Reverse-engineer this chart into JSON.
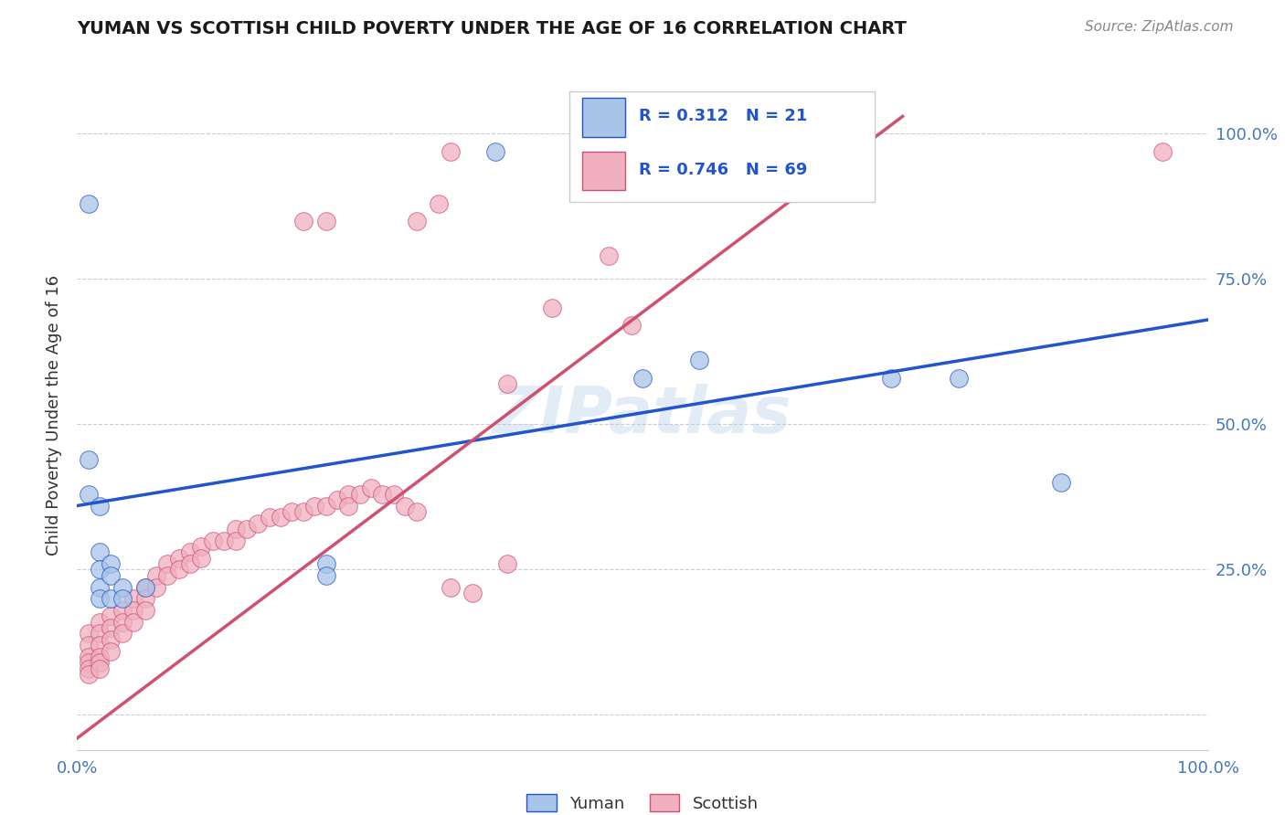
{
  "title": "YUMAN VS SCOTTISH CHILD POVERTY UNDER THE AGE OF 16 CORRELATION CHART",
  "source": "Source: ZipAtlas.com",
  "ylabel": "Child Poverty Under the Age of 16",
  "ytick_positions": [
    0.0,
    0.25,
    0.5,
    0.75,
    1.0
  ],
  "ytick_labels": [
    "",
    "25.0%",
    "50.0%",
    "75.0%",
    "100.0%"
  ],
  "xlim": [
    0.0,
    1.0
  ],
  "ylim": [
    -0.06,
    1.09
  ],
  "blue_color": "#a8c4e8",
  "pink_color": "#f0b0c0",
  "line_blue": "#2255cc",
  "line_pink": "#d05070",
  "watermark": "ZIPatlas",
  "blue_points": [
    [
      0.01,
      0.88
    ],
    [
      0.01,
      0.44
    ],
    [
      0.01,
      0.38
    ],
    [
      0.02,
      0.36
    ],
    [
      0.02,
      0.28
    ],
    [
      0.02,
      0.25
    ],
    [
      0.02,
      0.22
    ],
    [
      0.02,
      0.2
    ],
    [
      0.03,
      0.26
    ],
    [
      0.03,
      0.24
    ],
    [
      0.03,
      0.2
    ],
    [
      0.04,
      0.22
    ],
    [
      0.04,
      0.2
    ],
    [
      0.06,
      0.22
    ],
    [
      0.22,
      0.26
    ],
    [
      0.22,
      0.24
    ],
    [
      0.37,
      0.97
    ],
    [
      0.5,
      0.58
    ],
    [
      0.55,
      0.61
    ],
    [
      0.72,
      0.58
    ],
    [
      0.78,
      0.58
    ],
    [
      0.87,
      0.4
    ]
  ],
  "pink_points": [
    [
      0.01,
      0.14
    ],
    [
      0.01,
      0.12
    ],
    [
      0.01,
      0.1
    ],
    [
      0.01,
      0.09
    ],
    [
      0.01,
      0.08
    ],
    [
      0.01,
      0.07
    ],
    [
      0.02,
      0.16
    ],
    [
      0.02,
      0.14
    ],
    [
      0.02,
      0.12
    ],
    [
      0.02,
      0.1
    ],
    [
      0.02,
      0.09
    ],
    [
      0.02,
      0.08
    ],
    [
      0.03,
      0.17
    ],
    [
      0.03,
      0.15
    ],
    [
      0.03,
      0.13
    ],
    [
      0.03,
      0.11
    ],
    [
      0.04,
      0.18
    ],
    [
      0.04,
      0.16
    ],
    [
      0.04,
      0.14
    ],
    [
      0.05,
      0.2
    ],
    [
      0.05,
      0.18
    ],
    [
      0.05,
      0.16
    ],
    [
      0.06,
      0.22
    ],
    [
      0.06,
      0.2
    ],
    [
      0.06,
      0.18
    ],
    [
      0.07,
      0.24
    ],
    [
      0.07,
      0.22
    ],
    [
      0.08,
      0.26
    ],
    [
      0.08,
      0.24
    ],
    [
      0.09,
      0.27
    ],
    [
      0.09,
      0.25
    ],
    [
      0.1,
      0.28
    ],
    [
      0.1,
      0.26
    ],
    [
      0.11,
      0.29
    ],
    [
      0.11,
      0.27
    ],
    [
      0.12,
      0.3
    ],
    [
      0.13,
      0.3
    ],
    [
      0.14,
      0.32
    ],
    [
      0.14,
      0.3
    ],
    [
      0.15,
      0.32
    ],
    [
      0.16,
      0.33
    ],
    [
      0.17,
      0.34
    ],
    [
      0.18,
      0.34
    ],
    [
      0.19,
      0.35
    ],
    [
      0.2,
      0.35
    ],
    [
      0.21,
      0.36
    ],
    [
      0.22,
      0.36
    ],
    [
      0.23,
      0.37
    ],
    [
      0.24,
      0.38
    ],
    [
      0.24,
      0.36
    ],
    [
      0.25,
      0.38
    ],
    [
      0.26,
      0.39
    ],
    [
      0.27,
      0.38
    ],
    [
      0.28,
      0.38
    ],
    [
      0.29,
      0.36
    ],
    [
      0.3,
      0.35
    ],
    [
      0.33,
      0.22
    ],
    [
      0.35,
      0.21
    ],
    [
      0.38,
      0.26
    ],
    [
      0.38,
      0.57
    ],
    [
      0.42,
      0.7
    ],
    [
      0.47,
      0.79
    ],
    [
      0.49,
      0.67
    ],
    [
      0.2,
      0.85
    ],
    [
      0.22,
      0.85
    ],
    [
      0.3,
      0.85
    ],
    [
      0.32,
      0.88
    ],
    [
      0.33,
      0.97
    ],
    [
      0.96,
      0.97
    ]
  ],
  "blue_line_pts": [
    [
      0.0,
      0.36
    ],
    [
      1.0,
      0.68
    ]
  ],
  "pink_line_pts": [
    [
      0.0,
      -0.04
    ],
    [
      0.73,
      1.03
    ]
  ]
}
